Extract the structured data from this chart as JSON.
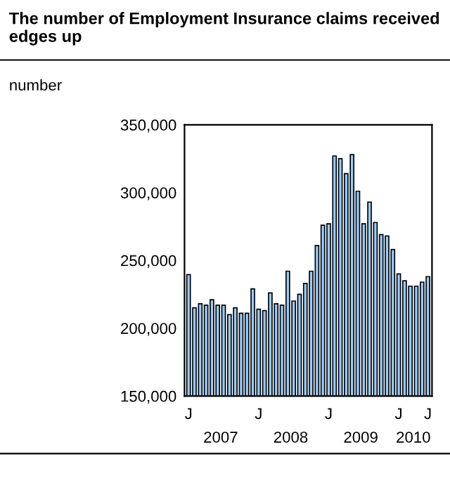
{
  "chart_data": {
    "type": "bar",
    "title": "The number of Employment Insurance claims received edges up",
    "ylabel": "number",
    "categories": [
      "J",
      null,
      null,
      null,
      null,
      null,
      null,
      null,
      null,
      null,
      null,
      null,
      "J",
      null,
      null,
      null,
      null,
      null,
      null,
      null,
      null,
      null,
      null,
      null,
      "J",
      null,
      null,
      null,
      null,
      null,
      null,
      null,
      null,
      null,
      null,
      null,
      "J",
      null,
      null,
      null,
      null,
      "J"
    ],
    "values": [
      239500,
      215000,
      218000,
      217000,
      221000,
      217000,
      217000,
      210000,
      215000,
      211000,
      211000,
      229000,
      214000,
      213000,
      226000,
      218000,
      217000,
      242000,
      220000,
      225000,
      233000,
      242000,
      261000,
      276000,
      277000,
      327000,
      325000,
      314000,
      328000,
      301000,
      277000,
      293000,
      278000,
      269000,
      268000,
      258000,
      240000,
      235000,
      231000,
      231000,
      234000,
      238000
    ],
    "color": "#99ccff",
    "ylim": [
      150000,
      350000
    ],
    "yticks": [
      {
        "value": 150000,
        "label": "150,000"
      },
      {
        "value": 200000,
        "label": "200,000"
      },
      {
        "value": 250000,
        "label": "250,000"
      },
      {
        "value": 300000,
        "label": "300,000"
      },
      {
        "value": 350000,
        "label": "350,000"
      }
    ],
    "grid": false,
    "legend": false,
    "annotations": [
      "2007",
      "2008",
      "2009",
      "2010"
    ]
  }
}
